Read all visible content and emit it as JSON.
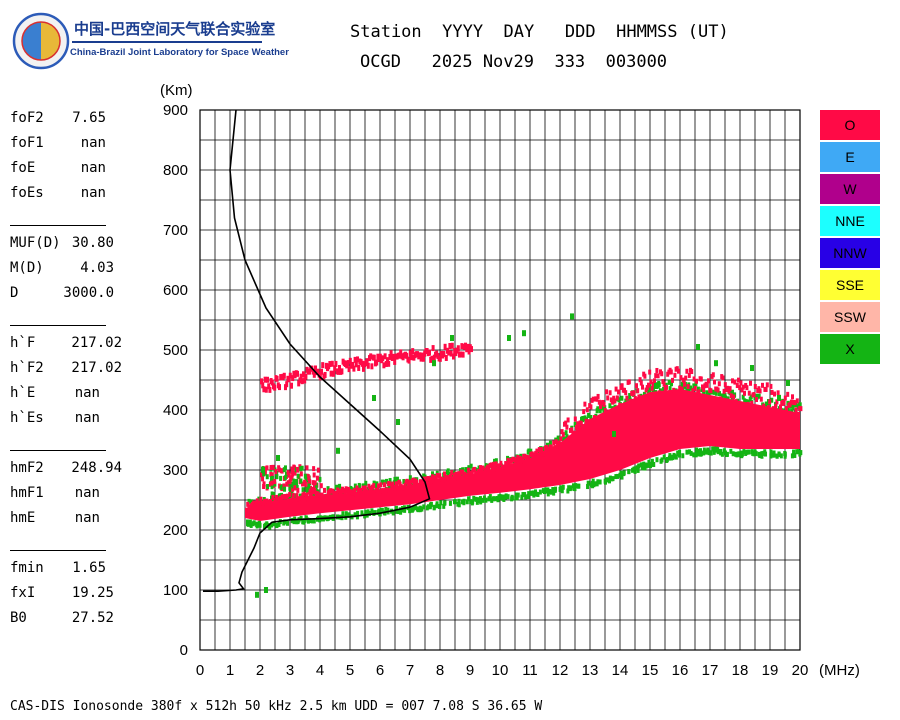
{
  "header": {
    "org_cn": "中国-巴西空间天气联合实验室",
    "org_en": "China-Brazil Joint Laboratory for Space Weather",
    "labels_line": "Station  YYYY  DAY   DDD  HHMMSS (UT)",
    "values_line": "OCGD   2025 Nov29  333  003000"
  },
  "params": [
    {
      "name": "foF2",
      "value": "7.65"
    },
    {
      "name": "foF1",
      "value": "nan"
    },
    {
      "name": "foE",
      "value": "nan"
    },
    {
      "name": "foEs",
      "value": "nan"
    },
    {
      "name": "MUF(D)",
      "value": "30.80"
    },
    {
      "name": "M(D)",
      "value": "4.03"
    },
    {
      "name": "D",
      "value": "3000.0"
    },
    {
      "name": "h`F",
      "value": "217.02"
    },
    {
      "name": "h`F2",
      "value": "217.02"
    },
    {
      "name": "h`E",
      "value": "nan"
    },
    {
      "name": "h`Es",
      "value": "nan"
    },
    {
      "name": "hmF2",
      "value": "248.94"
    },
    {
      "name": "hmF1",
      "value": "nan"
    },
    {
      "name": "hmE",
      "value": "nan"
    },
    {
      "name": "fmin",
      "value": "1.65"
    },
    {
      "name": "fxI",
      "value": "19.25"
    },
    {
      "name": "B0",
      "value": "27.52"
    }
  ],
  "legend": [
    {
      "label": "O",
      "color": "#ff0a46",
      "text_color": "#000000"
    },
    {
      "label": "E",
      "color": "#3fa9f5",
      "text_color": "#000000"
    },
    {
      "label": "W",
      "color": "#b0008c",
      "text_color": "#000000"
    },
    {
      "label": "NNE",
      "color": "#1cffff",
      "text_color": "#000000"
    },
    {
      "label": "NNW",
      "color": "#2800e6",
      "text_color": "#000000"
    },
    {
      "label": "SSE",
      "color": "#ffff33",
      "text_color": "#000000"
    },
    {
      "label": "SSW",
      "color": "#ffb6a8",
      "text_color": "#000000"
    },
    {
      "label": "X",
      "color": "#14b414",
      "text_color": "#000000"
    }
  ],
  "footer": "CAS-DIS Ionosonde 380f x 512h 50 kHz 2.5 km UDD = 007 7.08 S 36.65 W",
  "chart_data": {
    "type": "scatter",
    "xlabel": "(MHz)",
    "ylabel": "(Km)",
    "xlim": [
      0,
      20
    ],
    "ylim": [
      0,
      900
    ],
    "x_ticks": [
      0,
      1,
      2,
      3,
      4,
      5,
      6,
      7,
      8,
      9,
      10,
      11,
      12,
      13,
      14,
      15,
      16,
      17,
      18,
      19,
      20
    ],
    "y_ticks": [
      0,
      100,
      200,
      300,
      400,
      500,
      600,
      700,
      800,
      900
    ],
    "x_minor_step": 0.5,
    "y_minor_step": 50,
    "grid": true,
    "colors": {
      "o_trace": "#ff0a46",
      "x_trace": "#14b414",
      "profile": "#000000"
    },
    "o_trace_band": {
      "lower": [
        [
          1.5,
          220
        ],
        [
          2,
          215
        ],
        [
          3,
          222
        ],
        [
          4,
          228
        ],
        [
          5,
          233
        ],
        [
          6,
          238
        ],
        [
          7,
          243
        ],
        [
          8,
          250
        ],
        [
          9,
          257
        ],
        [
          10,
          262
        ],
        [
          11,
          268
        ],
        [
          12,
          275
        ],
        [
          13,
          285
        ],
        [
          14,
          300
        ],
        [
          15,
          320
        ],
        [
          16,
          335
        ],
        [
          17,
          340
        ],
        [
          18,
          335
        ],
        [
          19,
          335
        ],
        [
          20,
          335
        ]
      ],
      "upper": [
        [
          1.5,
          235
        ],
        [
          2,
          245
        ],
        [
          3,
          252
        ],
        [
          4,
          258
        ],
        [
          5,
          262
        ],
        [
          6,
          268
        ],
        [
          7,
          275
        ],
        [
          8,
          285
        ],
        [
          9,
          293
        ],
        [
          10,
          305
        ],
        [
          11,
          320
        ],
        [
          12,
          345
        ],
        [
          13,
          385
        ],
        [
          14,
          410
        ],
        [
          15,
          430
        ],
        [
          16,
          435
        ],
        [
          17,
          425
        ],
        [
          18,
          415
        ],
        [
          19,
          405
        ],
        [
          20,
          395
        ]
      ]
    },
    "o_trace_upper_branch": [
      [
        2,
        445
      ],
      [
        3,
        455
      ],
      [
        4,
        470
      ],
      [
        5,
        478
      ],
      [
        6,
        488
      ],
      [
        7,
        495
      ],
      [
        8,
        500
      ],
      [
        9,
        510
      ]
    ],
    "o_trace_spread_patch": {
      "x": [
        2,
        4
      ],
      "y": [
        270,
        310
      ]
    },
    "x_trace_points": [
      [
        1.9,
        92
      ],
      [
        2.2,
        100
      ],
      [
        2.1,
        300
      ],
      [
        2.6,
        320
      ],
      [
        3.2,
        280
      ],
      [
        4.6,
        332
      ],
      [
        5.8,
        420
      ],
      [
        6.6,
        380
      ],
      [
        7.8,
        478
      ],
      [
        8.4,
        520
      ],
      [
        10.3,
        520
      ],
      [
        10.8,
        528
      ],
      [
        12.4,
        556
      ],
      [
        16.6,
        505
      ],
      [
        17.2,
        478
      ],
      [
        18.4,
        470
      ],
      [
        19.6,
        445
      ],
      [
        19.3,
        420
      ],
      [
        15.2,
        440
      ],
      [
        13.8,
        360
      ]
    ],
    "profile": [
      [
        1.2,
        900
      ],
      [
        1.1,
        850
      ],
      [
        1.0,
        800
      ],
      [
        1.15,
        720
      ],
      [
        1.5,
        650
      ],
      [
        2.2,
        570
      ],
      [
        3.0,
        510
      ],
      [
        4.0,
        455
      ],
      [
        5.0,
        410
      ],
      [
        6.0,
        365
      ],
      [
        7.0,
        318
      ],
      [
        7.5,
        280
      ],
      [
        7.65,
        252
      ],
      [
        7.0,
        238
      ],
      [
        6.0,
        228
      ],
      [
        5.0,
        222
      ],
      [
        4.0,
        219
      ],
      [
        3.0,
        217
      ],
      [
        2.4,
        213
      ],
      [
        2.0,
        195
      ],
      [
        1.8,
        170
      ],
      [
        1.6,
        150
      ],
      [
        1.4,
        130
      ],
      [
        1.3,
        112
      ],
      [
        1.45,
        102
      ],
      [
        1.2,
        100
      ],
      [
        0.6,
        98
      ],
      [
        0.1,
        98
      ]
    ]
  }
}
